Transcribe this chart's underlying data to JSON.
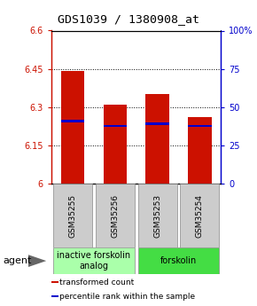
{
  "title": "GDS1039 / 1380908_at",
  "samples": [
    "GSM35255",
    "GSM35256",
    "GSM35253",
    "GSM35254"
  ],
  "bar_tops": [
    6.44,
    6.31,
    6.35,
    6.26
  ],
  "bar_bottom": 6.0,
  "percentile_values": [
    6.245,
    6.225,
    6.235,
    6.225
  ],
  "bar_color": "#cc1100",
  "percentile_color": "#0000cc",
  "ylim": [
    6.0,
    6.6
  ],
  "y2lim": [
    0,
    100
  ],
  "yticks": [
    6.0,
    6.15,
    6.3,
    6.45,
    6.6
  ],
  "ytick_labels": [
    "6",
    "6.15",
    "6.3",
    "6.45",
    "6.6"
  ],
  "y2ticks": [
    0,
    25,
    50,
    75,
    100
  ],
  "y2tick_labels": [
    "0",
    "25",
    "50",
    "75",
    "100%"
  ],
  "groups": [
    {
      "label": "inactive forskolin\nanalog",
      "indices": [
        0,
        1
      ],
      "color": "#aaffaa"
    },
    {
      "label": "forskolin",
      "indices": [
        2,
        3
      ],
      "color": "#44dd44"
    }
  ],
  "agent_label": "agent",
  "legend_items": [
    {
      "label": "transformed count",
      "color": "#cc1100"
    },
    {
      "label": "percentile rank within the sample",
      "color": "#0000cc"
    }
  ],
  "bar_width": 0.55,
  "title_fontsize": 9.5,
  "tick_fontsize": 7,
  "sample_fontsize": 6.5,
  "group_fontsize": 7,
  "legend_fontsize": 6.5,
  "agent_fontsize": 8,
  "grid_lines": [
    6.15,
    6.3,
    6.45
  ],
  "bar_gap": 0.04,
  "sample_box_color": "#cccccc",
  "sample_box_edge": "#888888"
}
